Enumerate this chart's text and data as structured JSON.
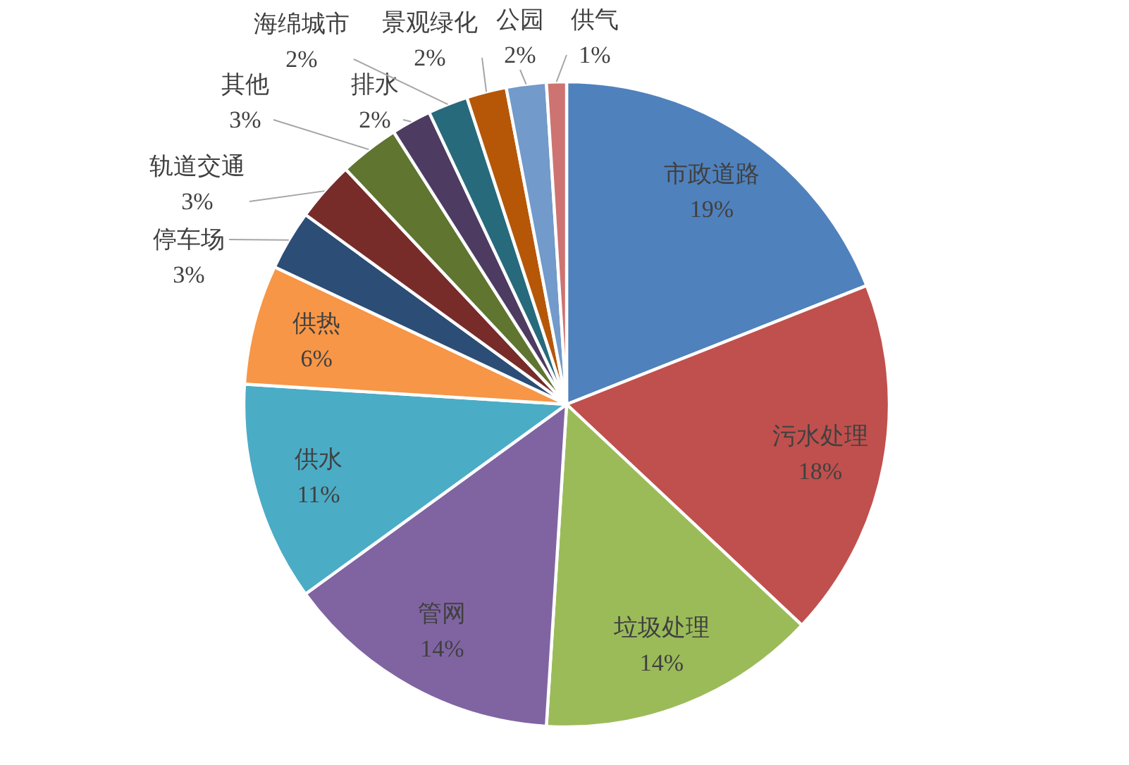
{
  "chart_data": {
    "type": "pie",
    "categories": [
      "市政道路",
      "污水处理",
      "垃圾处理",
      "管网",
      "供水",
      "供热",
      "停车场",
      "轨道交通",
      "其他",
      "排水",
      "海绵城市",
      "景观绿化",
      "公园",
      "供气"
    ],
    "values": [
      19,
      18,
      14,
      14,
      11,
      6,
      3,
      3,
      3,
      2,
      2,
      2,
      2,
      1
    ],
    "value_labels": [
      "19%",
      "18%",
      "14%",
      "14%",
      "11%",
      "6%",
      "3%",
      "3%",
      "3%",
      "2%",
      "2%",
      "2%",
      "2%",
      "1%"
    ],
    "colors": [
      "#4f81bd",
      "#c0504d",
      "#9bbb59",
      "#8064a2",
      "#4bacc6",
      "#f79646",
      "#2c4d75",
      "#772c2a",
      "#5f7530",
      "#4d3b62",
      "#276a7c",
      "#b65708",
      "#729aca",
      "#cd7371"
    ]
  }
}
